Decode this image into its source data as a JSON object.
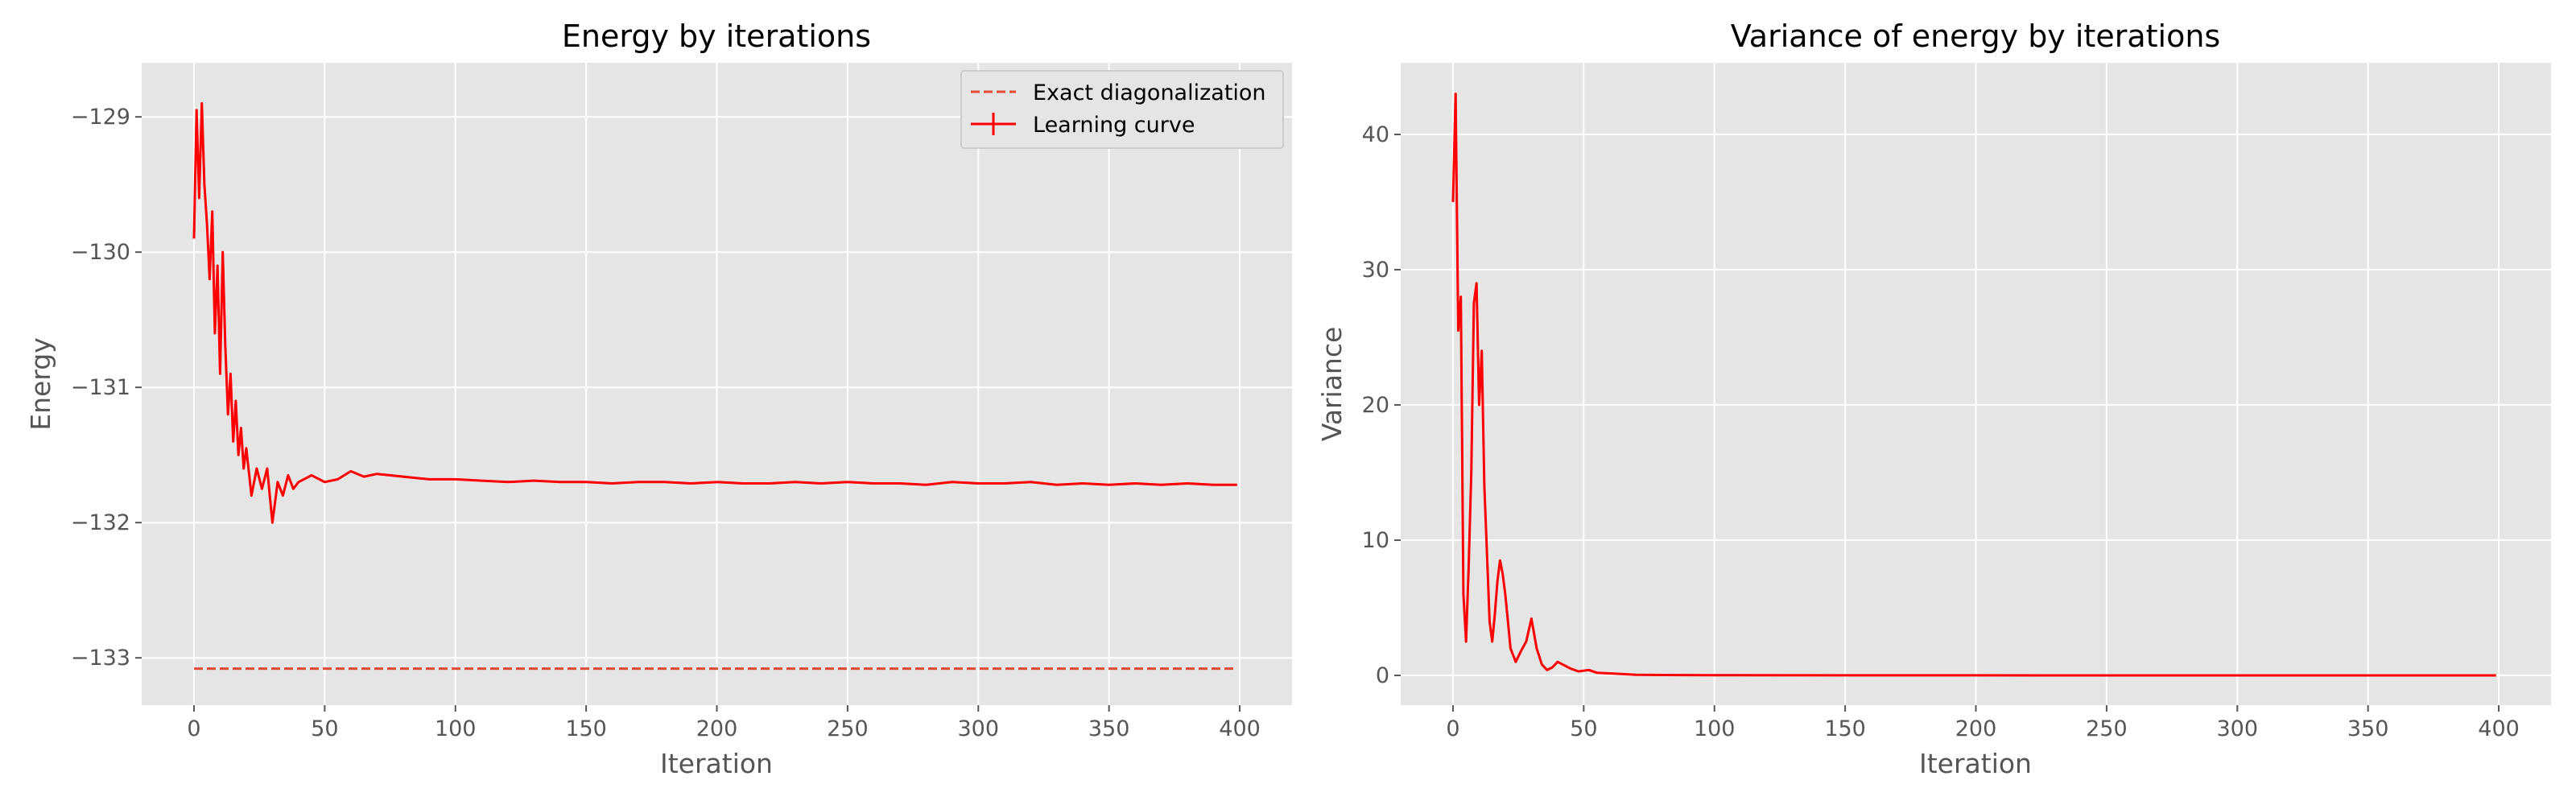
{
  "colors": {
    "plot_bg": "#E5E5E5",
    "grid": "#FFFFFF",
    "curve": "#FF0000",
    "exact": "#E24A33",
    "text": "#555555",
    "title": "#000000"
  },
  "chart_data": [
    {
      "type": "line",
      "title": "Energy by iterations",
      "xlabel": "Iteration",
      "ylabel": "Energy",
      "xlim": [
        -20,
        420
      ],
      "ylim": [
        -133.35,
        -128.6
      ],
      "xticks": [
        0,
        50,
        100,
        150,
        200,
        250,
        300,
        350,
        400
      ],
      "yticks": [
        -133,
        -132,
        -131,
        -130,
        -129
      ],
      "ytick_labels": [
        "−133",
        "−132",
        "−131",
        "−130",
        "−129"
      ],
      "grid": true,
      "legend": {
        "placement": "upper right",
        "entries": [
          "Exact diagonalization",
          "Learning curve"
        ]
      },
      "series": [
        {
          "name": "Exact diagonalization",
          "style": "dashed",
          "x": [
            0,
            399
          ],
          "y": [
            -133.08,
            -133.08
          ]
        },
        {
          "name": "Learning curve",
          "style": "solid",
          "x": [
            0,
            1,
            2,
            3,
            4,
            5,
            6,
            7,
            8,
            9,
            10,
            11,
            12,
            13,
            14,
            15,
            16,
            17,
            18,
            19,
            20,
            22,
            24,
            26,
            28,
            30,
            32,
            34,
            36,
            38,
            40,
            45,
            50,
            55,
            60,
            65,
            70,
            80,
            90,
            100,
            110,
            120,
            130,
            140,
            150,
            160,
            170,
            180,
            190,
            200,
            210,
            220,
            230,
            240,
            250,
            260,
            270,
            280,
            290,
            300,
            310,
            320,
            330,
            340,
            350,
            360,
            370,
            380,
            390,
            399
          ],
          "y": [
            -129.9,
            -128.95,
            -129.6,
            -128.9,
            -129.5,
            -129.8,
            -130.2,
            -129.7,
            -130.6,
            -130.1,
            -130.9,
            -130.0,
            -130.7,
            -131.2,
            -130.9,
            -131.4,
            -131.1,
            -131.5,
            -131.3,
            -131.6,
            -131.45,
            -131.8,
            -131.6,
            -131.75,
            -131.6,
            -132.0,
            -131.7,
            -131.8,
            -131.65,
            -131.75,
            -131.7,
            -131.65,
            -131.7,
            -131.68,
            -131.62,
            -131.66,
            -131.64,
            -131.66,
            -131.68,
            -131.68,
            -131.69,
            -131.7,
            -131.69,
            -131.7,
            -131.7,
            -131.71,
            -131.7,
            -131.7,
            -131.71,
            -131.7,
            -131.71,
            -131.71,
            -131.7,
            -131.71,
            -131.7,
            -131.71,
            -131.71,
            -131.72,
            -131.7,
            -131.71,
            -131.71,
            -131.7,
            -131.72,
            -131.71,
            -131.72,
            -131.71,
            -131.72,
            -131.71,
            -131.72,
            -131.72
          ]
        }
      ]
    },
    {
      "type": "line",
      "title": "Variance of energy by iterations",
      "xlabel": "Iteration",
      "ylabel": "Variance",
      "xlim": [
        -20,
        420
      ],
      "ylim": [
        -2.2,
        45.3
      ],
      "xticks": [
        0,
        50,
        100,
        150,
        200,
        250,
        300,
        350,
        400
      ],
      "yticks": [
        0,
        10,
        20,
        30,
        40
      ],
      "ytick_labels": [
        "0",
        "10",
        "20",
        "30",
        "40"
      ],
      "grid": true,
      "series": [
        {
          "style": "solid",
          "x": [
            0,
            1,
            2,
            3,
            4,
            5,
            6,
            7,
            8,
            9,
            10,
            11,
            12,
            13,
            14,
            15,
            16,
            17,
            18,
            19,
            20,
            21,
            22,
            24,
            26,
            28,
            30,
            32,
            34,
            36,
            38,
            40,
            42,
            45,
            48,
            52,
            55,
            60,
            65,
            70,
            80,
            100,
            150,
            200,
            250,
            300,
            350,
            399
          ],
          "y": [
            35.0,
            43.0,
            25.5,
            28.0,
            6.0,
            2.5,
            8.0,
            15.0,
            27.5,
            29.0,
            20.0,
            24.0,
            14.0,
            9.0,
            4.0,
            2.5,
            4.5,
            7.0,
            8.5,
            7.5,
            6.0,
            4.0,
            2.0,
            1.0,
            1.8,
            2.5,
            4.2,
            2.0,
            0.8,
            0.4,
            0.6,
            1.0,
            0.8,
            0.5,
            0.3,
            0.4,
            0.2,
            0.15,
            0.1,
            0.05,
            0.03,
            0.02,
            0.01,
            0.01,
            0.0,
            0.0,
            0.0,
            0.0
          ]
        }
      ]
    }
  ]
}
